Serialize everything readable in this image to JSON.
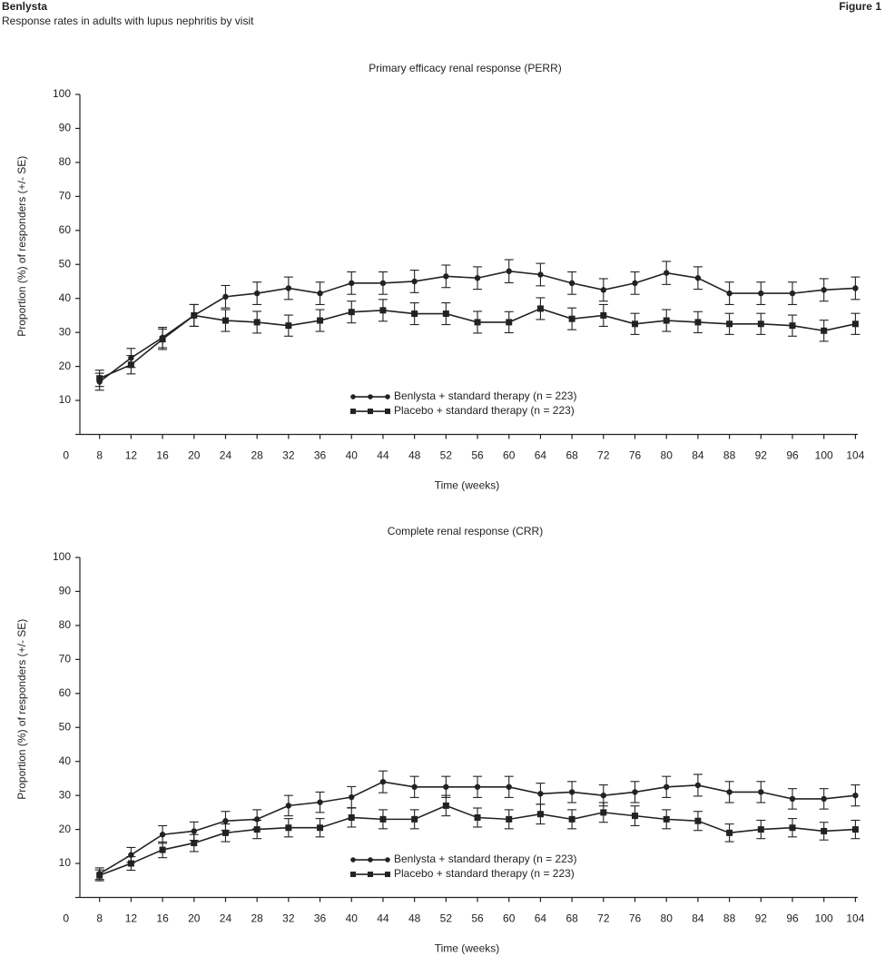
{
  "header": {
    "title": "Benlysta",
    "subtitle": "Response rates in adults with lupus nephritis by visit",
    "figure": "Figure 1"
  },
  "chart_data": [
    {
      "type": "line",
      "title": "Primary efficacy renal response (PERR)",
      "x_label": "Time (weeks)",
      "y_label": "Proportion (%) of responders (+/- SE)",
      "x": [
        8,
        12,
        16,
        20,
        24,
        28,
        32,
        36,
        40,
        44,
        48,
        52,
        56,
        60,
        64,
        68,
        72,
        76,
        80,
        84,
        88,
        92,
        96,
        100,
        104
      ],
      "xlim": [
        5.5,
        104.3
      ],
      "xticks": [
        8,
        12,
        16,
        20,
        24,
        28,
        32,
        36,
        40,
        44,
        48,
        52,
        56,
        60,
        64,
        68,
        72,
        76,
        80,
        84,
        88,
        92,
        96,
        100,
        104
      ],
      "ylim": [
        0,
        100
      ],
      "yticks": [
        0,
        10,
        20,
        30,
        40,
        50,
        60,
        70,
        80,
        90,
        100
      ],
      "series": [
        {
          "name": "Benlysta + standard therapy (n = 223)",
          "color": "#222222",
          "marker": "circle",
          "values": [
            15.5,
            22.5,
            28.5,
            35,
            40.5,
            41.5,
            43,
            41.5,
            44.5,
            44.5,
            45,
            46.5,
            46,
            48,
            47,
            44.5,
            42.5,
            44.5,
            47.5,
            46,
            41.5,
            41.5,
            41.5,
            42.5,
            43
          ],
          "errors": [
            2.5,
            2.8,
            3,
            3.2,
            3.3,
            3.3,
            3.3,
            3.3,
            3.3,
            3.3,
            3.3,
            3.3,
            3.3,
            3.4,
            3.3,
            3.3,
            3.3,
            3.3,
            3.4,
            3.3,
            3.3,
            3.3,
            3.3,
            3.3,
            3.3
          ]
        },
        {
          "name": "Placebo + standard therapy (n = 223)",
          "color": "#222222",
          "marker": "square",
          "values": [
            16.5,
            20.5,
            28,
            35,
            33.5,
            33,
            32,
            33.5,
            36,
            36.5,
            35.5,
            35.5,
            33,
            33,
            37,
            34,
            35,
            32.5,
            33.5,
            33,
            32.5,
            32.5,
            32,
            30.5,
            32.5
          ],
          "errors": [
            2.4,
            2.7,
            3,
            3.2,
            3.2,
            3.2,
            3.1,
            3.2,
            3.2,
            3.2,
            3.2,
            3.2,
            3.2,
            3.1,
            3.2,
            3.2,
            3.2,
            3.1,
            3.2,
            3.1,
            3.1,
            3.1,
            3.1,
            3.1,
            3.1
          ]
        }
      ]
    },
    {
      "type": "line",
      "title": "Complete renal response (CRR)",
      "x_label": "Time (weeks)",
      "y_label": "Proportion (%) of responders (+/- SE)",
      "x": [
        8,
        12,
        16,
        20,
        24,
        28,
        32,
        36,
        40,
        44,
        48,
        52,
        56,
        60,
        64,
        68,
        72,
        76,
        80,
        84,
        88,
        92,
        96,
        100,
        104
      ],
      "xlim": [
        5.5,
        104.3
      ],
      "xticks": [
        8,
        12,
        16,
        20,
        24,
        28,
        32,
        36,
        40,
        44,
        48,
        52,
        56,
        60,
        64,
        68,
        72,
        76,
        80,
        84,
        88,
        92,
        96,
        100,
        104
      ],
      "ylim": [
        0,
        100
      ],
      "yticks": [
        0,
        10,
        20,
        30,
        40,
        50,
        60,
        70,
        80,
        90,
        100
      ],
      "series": [
        {
          "name": "Benlysta + standard therapy (n = 223)",
          "color": "#222222",
          "marker": "circle",
          "values": [
            7,
            12.5,
            18.5,
            19.5,
            22.5,
            23,
            27,
            28,
            29.5,
            34,
            32.5,
            32.5,
            32.5,
            32.5,
            30.5,
            31,
            30,
            31,
            32.5,
            33,
            31,
            31,
            29,
            29,
            30
          ],
          "errors": [
            1.7,
            2.2,
            2.6,
            2.7,
            2.8,
            2.8,
            3,
            3,
            3.1,
            3.2,
            3.1,
            3.1,
            3.1,
            3.1,
            3.1,
            3.1,
            3.1,
            3.1,
            3.1,
            3.2,
            3.1,
            3.1,
            3,
            3,
            3.1
          ]
        },
        {
          "name": "Placebo + standard therapy (n = 223)",
          "color": "#222222",
          "marker": "square",
          "values": [
            6.5,
            10,
            14,
            16,
            19,
            20,
            20.5,
            20.5,
            23.5,
            23,
            23,
            27,
            23.5,
            23,
            24.5,
            23,
            25,
            24,
            23,
            22.5,
            19,
            20,
            20.5,
            19.5,
            20
          ],
          "errors": [
            1.6,
            2,
            2.3,
            2.5,
            2.6,
            2.7,
            2.7,
            2.7,
            2.8,
            2.8,
            2.8,
            3,
            2.8,
            2.8,
            2.9,
            2.8,
            2.9,
            2.9,
            2.8,
            2.8,
            2.6,
            2.7,
            2.7,
            2.6,
            2.7
          ]
        }
      ]
    }
  ]
}
